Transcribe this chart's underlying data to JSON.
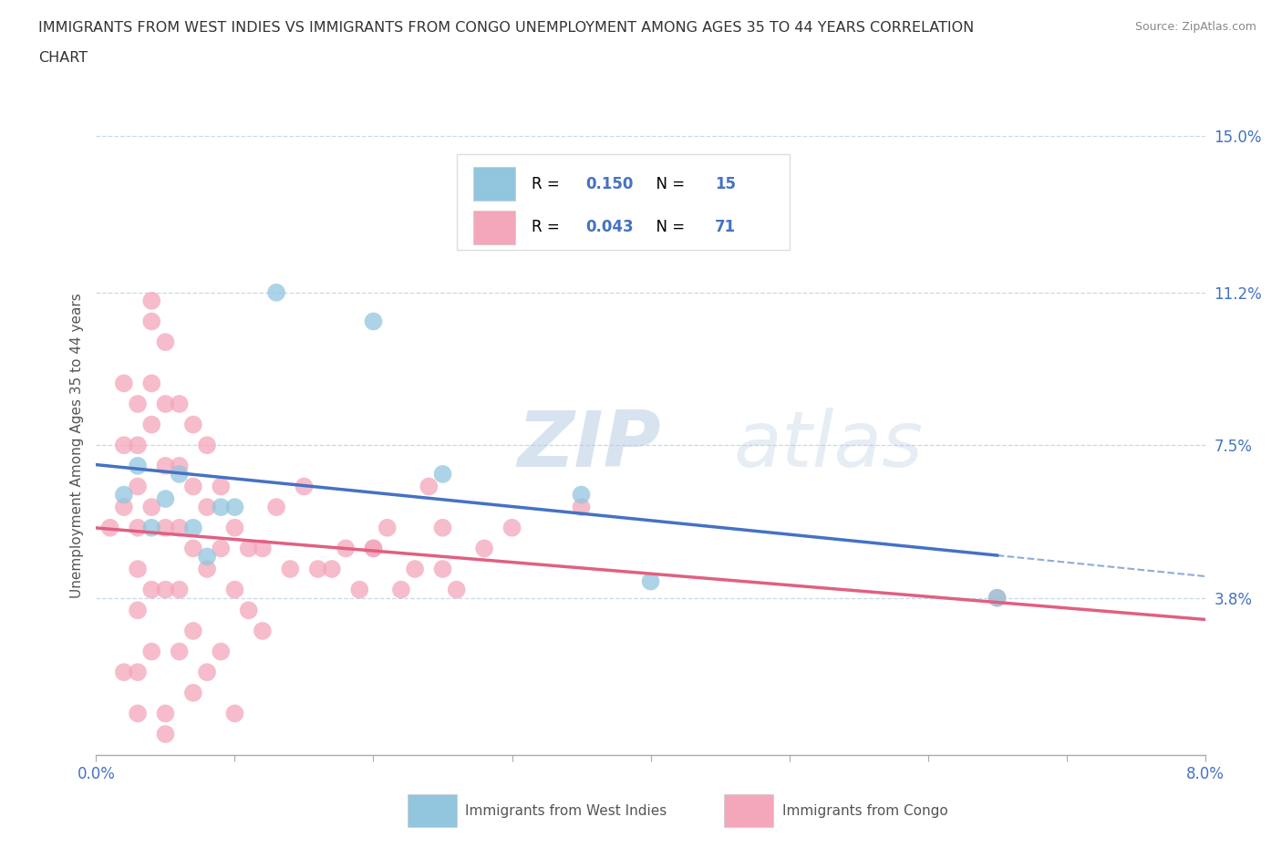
{
  "title_line1": "IMMIGRANTS FROM WEST INDIES VS IMMIGRANTS FROM CONGO UNEMPLOYMENT AMONG AGES 35 TO 44 YEARS CORRELATION",
  "title_line2": "CHART",
  "source": "Source: ZipAtlas.com",
  "ylabel": "Unemployment Among Ages 35 to 44 years",
  "xlim": [
    0.0,
    0.08
  ],
  "ylim": [
    0.0,
    0.15
  ],
  "xtick_positions": [
    0.0,
    0.01,
    0.02,
    0.03,
    0.04,
    0.05,
    0.06,
    0.07,
    0.08
  ],
  "xticklabels": [
    "0.0%",
    "",
    "",
    "",
    "",
    "",
    "",
    "",
    "8.0%"
  ],
  "ytick_labels_right": [
    "3.8%",
    "7.5%",
    "11.2%",
    "15.0%"
  ],
  "ytick_vals_right": [
    0.038,
    0.075,
    0.112,
    0.15
  ],
  "r_west_indies": "0.150",
  "n_west_indies": "15",
  "r_congo": "0.043",
  "n_congo": "71",
  "color_west_indies": "#92c5de",
  "color_congo": "#f4a6ba",
  "trendline_color_west_indies": "#4472c4",
  "trendline_color_congo": "#e06080",
  "west_indies_x": [
    0.002,
    0.003,
    0.004,
    0.005,
    0.006,
    0.007,
    0.008,
    0.009,
    0.01,
    0.013,
    0.02,
    0.025,
    0.035,
    0.04,
    0.065
  ],
  "west_indies_y": [
    0.063,
    0.07,
    0.055,
    0.062,
    0.068,
    0.055,
    0.048,
    0.06,
    0.06,
    0.112,
    0.105,
    0.068,
    0.063,
    0.042,
    0.038
  ],
  "congo_x": [
    0.001,
    0.002,
    0.002,
    0.002,
    0.002,
    0.003,
    0.003,
    0.003,
    0.003,
    0.003,
    0.003,
    0.003,
    0.004,
    0.004,
    0.004,
    0.004,
    0.004,
    0.004,
    0.004,
    0.005,
    0.005,
    0.005,
    0.005,
    0.005,
    0.005,
    0.006,
    0.006,
    0.006,
    0.006,
    0.006,
    0.007,
    0.007,
    0.007,
    0.007,
    0.007,
    0.008,
    0.008,
    0.008,
    0.008,
    0.009,
    0.009,
    0.009,
    0.01,
    0.01,
    0.01,
    0.011,
    0.011,
    0.012,
    0.012,
    0.013,
    0.014,
    0.015,
    0.016,
    0.017,
    0.018,
    0.019,
    0.02,
    0.02,
    0.021,
    0.022,
    0.023,
    0.024,
    0.025,
    0.025,
    0.026,
    0.028,
    0.03,
    0.035,
    0.065,
    0.003,
    0.005
  ],
  "congo_y": [
    0.055,
    0.09,
    0.075,
    0.06,
    0.02,
    0.085,
    0.075,
    0.065,
    0.055,
    0.045,
    0.035,
    0.02,
    0.11,
    0.105,
    0.09,
    0.08,
    0.06,
    0.04,
    0.025,
    0.1,
    0.085,
    0.07,
    0.055,
    0.04,
    0.01,
    0.085,
    0.07,
    0.055,
    0.04,
    0.025,
    0.08,
    0.065,
    0.05,
    0.03,
    0.015,
    0.075,
    0.06,
    0.045,
    0.02,
    0.065,
    0.05,
    0.025,
    0.055,
    0.04,
    0.01,
    0.05,
    0.035,
    0.05,
    0.03,
    0.06,
    0.045,
    0.065,
    0.045,
    0.045,
    0.05,
    0.04,
    0.05,
    0.05,
    0.055,
    0.04,
    0.045,
    0.065,
    0.045,
    0.055,
    0.04,
    0.05,
    0.055,
    0.06,
    0.038,
    0.01,
    0.005
  ],
  "watermark": "ZIPatlas",
  "background_color": "#ffffff",
  "grid_color": "#c8d8e8",
  "axis_label_color": "#4472c4",
  "legend_box_color": "#dddddd",
  "legend_text_color": "#000000",
  "legend_val_color": "#4472c4"
}
